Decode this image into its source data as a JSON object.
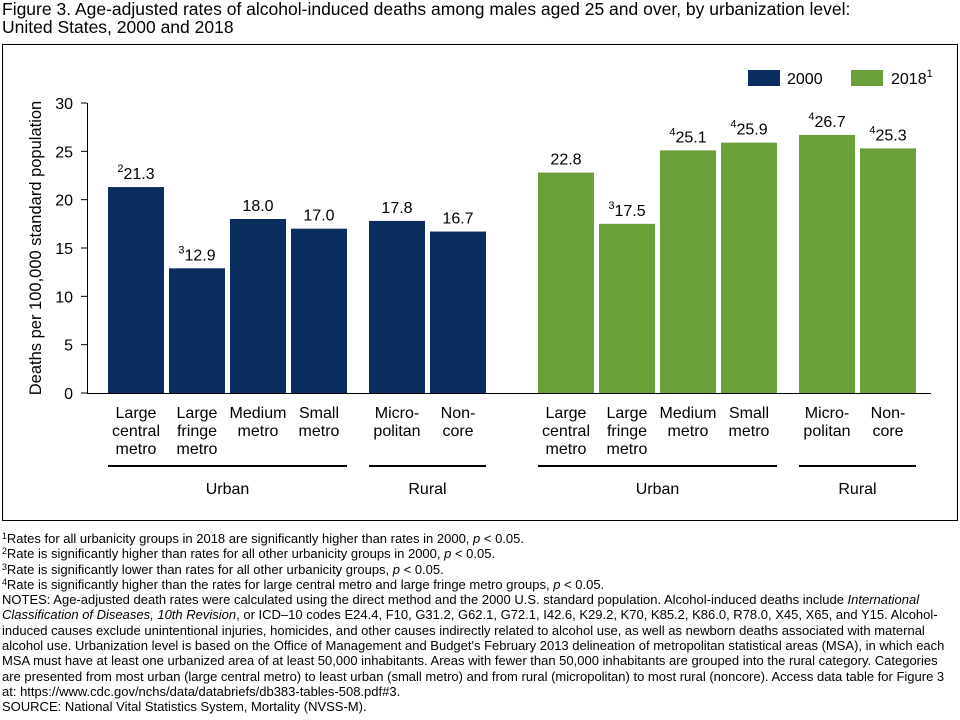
{
  "title": "Figure 3. Age-adjusted rates of alcohol-induced deaths among males aged 25 and over, by urbanization level: United States, 2000 and 2018",
  "chart_data": {
    "type": "bar",
    "xlabel": "",
    "ylabel": "Deaths per 100,000 standard population",
    "ylim": [
      0,
      30
    ],
    "yticks": [
      0,
      5,
      10,
      15,
      20,
      25,
      30
    ],
    "grid": false,
    "legend_position": "top-right",
    "groups": [
      {
        "label": "Urban",
        "categories": [
          [
            "Large",
            "central",
            "metro"
          ],
          [
            "Large",
            "fringe",
            "metro"
          ],
          [
            "Medium",
            "metro"
          ],
          [
            "Small",
            "metro"
          ]
        ]
      },
      {
        "label": "Rural",
        "categories": [
          [
            "Micro-",
            "politan"
          ],
          [
            "Non-",
            "core"
          ]
        ]
      }
    ],
    "series": [
      {
        "name": "2000",
        "color": "#0b2c5f",
        "values": [
          21.3,
          12.9,
          18.0,
          17.0,
          17.8,
          16.7
        ],
        "label_notes": [
          "2",
          "3",
          "",
          "",
          "",
          ""
        ]
      },
      {
        "name": "2018",
        "legend_note": "1",
        "color": "#6a9f3a",
        "values": [
          22.8,
          17.5,
          25.1,
          25.9,
          26.7,
          25.3
        ],
        "label_notes": [
          "",
          "3",
          "4",
          "4",
          "4",
          "4"
        ]
      }
    ]
  },
  "footnotes": [
    {
      "marker": "1",
      "text": "Rates for all urbanicity groups in 2018 are significantly higher than rates in 2000, ",
      "italic": "p",
      "tail": " < 0.05."
    },
    {
      "marker": "2",
      "text": "Rate is significantly higher than rates for all other urbanicity groups in 2000, ",
      "italic": "p",
      "tail": " < 0.05."
    },
    {
      "marker": "3",
      "text": "Rate is significantly lower than rates for all other urbanicity groups, ",
      "italic": "p",
      "tail": " < 0.05."
    },
    {
      "marker": "4",
      "text": "Rate is significantly higher than the rates for large central metro and large fringe metro groups, ",
      "italic": "p",
      "tail": " < 0.05."
    }
  ],
  "notes": {
    "lead": "NOTES: Age-adjusted death rates were calculated using the direct method and the 2000 U.S. standard population. Alcohol-induced deaths include ",
    "italic": "International Classification of Diseases, 10th Revision",
    "rest": ", or ICD–10 codes E24.4, F10, G31.2, G62.1, G72.1, I42.6, K29.2, K70, K85.2, K86.0, R78.0, X45, X65, and Y15. Alcohol-induced causes exclude unintentional injuries, homicides, and other causes indirectly related to alcohol use, as well as newborn deaths associated with maternal alcohol use. Urbanization level is based on the Office of Management and Budget's February 2013 delineation of metropolitan statistical areas (MSA), in which each MSA must have at least one urbanized area of at least 50,000 inhabitants. Areas with fewer than 50,000 inhabitants are grouped into the rural category. Categories are presented from most urban (large central metro) to least urban (small metro) and from rural (micropolitan) to most rural (noncore). Access data table for Figure 3 at: https://www.cdc.gov/nchs/data/databriefs/db383-tables-508.pdf#3."
  },
  "source": "SOURCE: National Vital Statistics System, Mortality (NVSS-M)."
}
